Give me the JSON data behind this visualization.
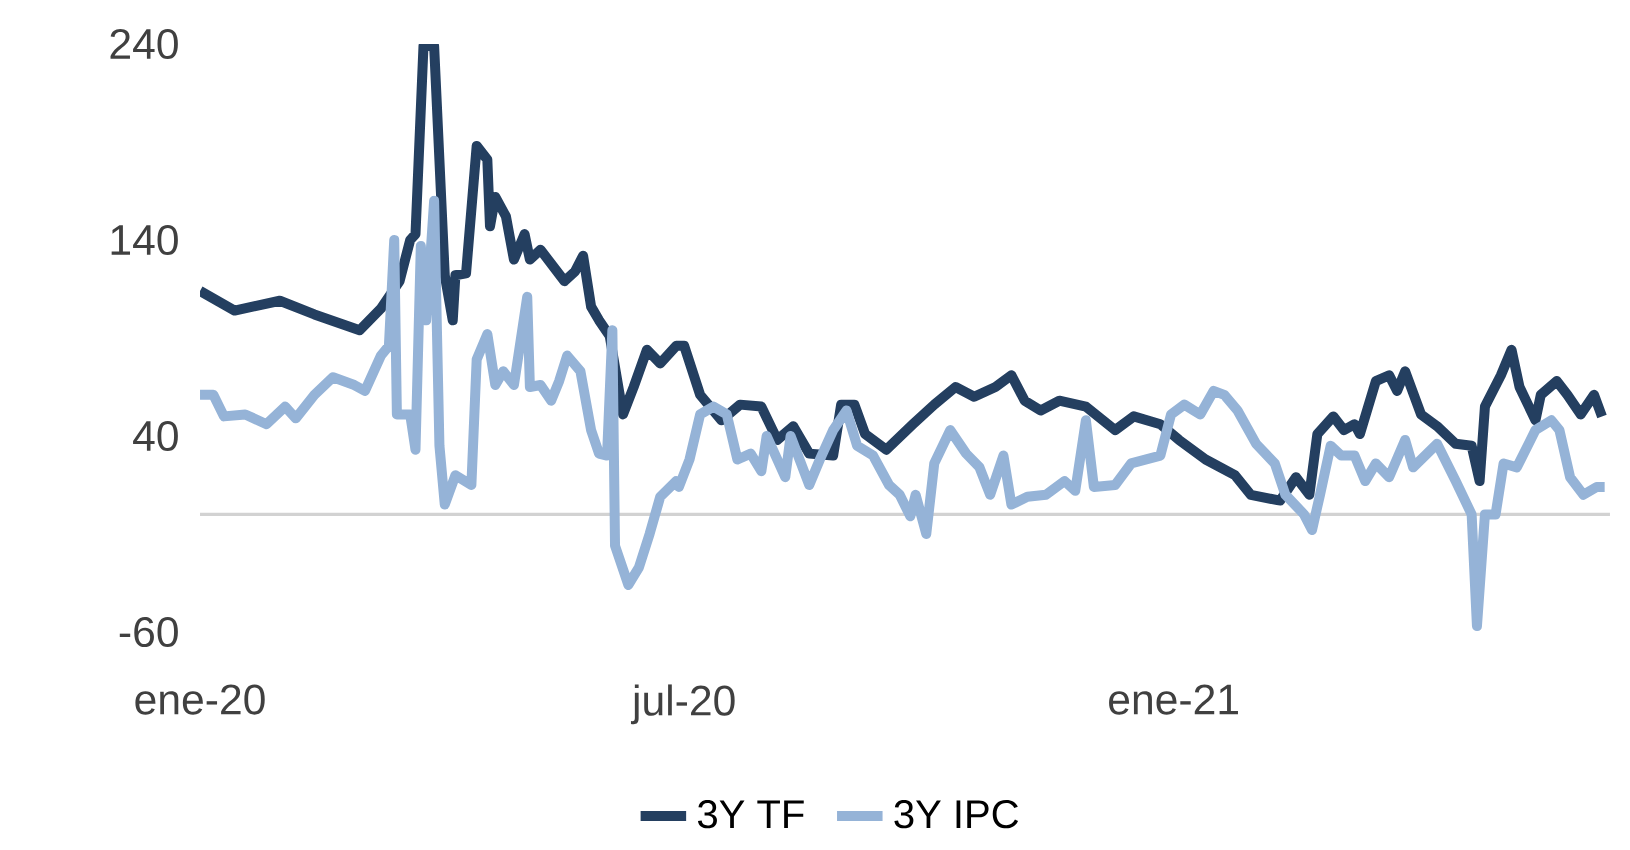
{
  "chart_data": {
    "type": "line",
    "ylim": [
      -60,
      240
    ],
    "yticks": [
      -60,
      40,
      140,
      240
    ],
    "xlim": [
      "2020-01-01",
      "2021-06-14"
    ],
    "xticks": [
      {
        "value": "2020-01-01",
        "label": "ene-20"
      },
      {
        "value": "2020-07-01",
        "label": "jul-20"
      },
      {
        "value": "2021-01-01",
        "label": "ene-21"
      }
    ],
    "legend": "bottom",
    "series": [
      {
        "name": "3Y TF",
        "color": "#243f60",
        "x": [
          "2020-01-01",
          "2020-01-14",
          "2020-01-31",
          "2020-02-13",
          "2020-03-01",
          "2020-03-09",
          "2020-03-16",
          "2020-03-20",
          "2020-03-22",
          "2020-03-25",
          "2020-03-29",
          "2020-04-02",
          "2020-04-05",
          "2020-04-06",
          "2020-04-10",
          "2020-04-14",
          "2020-04-18",
          "2020-04-19",
          "2020-04-21",
          "2020-04-25",
          "2020-04-28",
          "2020-05-02",
          "2020-05-04",
          "2020-05-08",
          "2020-05-17",
          "2020-05-21",
          "2020-05-24",
          "2020-05-27",
          "2020-05-30",
          "2020-06-03",
          "2020-06-08",
          "2020-06-12",
          "2020-06-17",
          "2020-06-22",
          "2020-06-28",
          "2020-07-01",
          "2020-07-07",
          "2020-07-15",
          "2020-07-22",
          "2020-07-30",
          "2020-08-05",
          "2020-08-11",
          "2020-08-17",
          "2020-08-26",
          "2020-08-29",
          "2020-09-03",
          "2020-09-07",
          "2020-09-15",
          "2020-09-25",
          "2020-10-03",
          "2020-10-11",
          "2020-10-18",
          "2020-10-26",
          "2020-11-01",
          "2020-11-06",
          "2020-11-12",
          "2020-11-19",
          "2020-11-29",
          "2020-12-10",
          "2020-12-17",
          "2020-12-27",
          "2021-01-03",
          "2021-01-13",
          "2021-01-24",
          "2021-01-30",
          "2021-02-10",
          "2021-02-16",
          "2021-02-21",
          "2021-02-24",
          "2021-03-02",
          "2021-03-06",
          "2021-03-10",
          "2021-03-12",
          "2021-03-18",
          "2021-03-23",
          "2021-03-26",
          "2021-03-29",
          "2021-04-04",
          "2021-04-10",
          "2021-04-17",
          "2021-04-23",
          "2021-04-26",
          "2021-04-28",
          "2021-05-04",
          "2021-05-08",
          "2021-05-11",
          "2021-05-17",
          "2021-05-19",
          "2021-05-25",
          "2021-05-29",
          "2021-06-03",
          "2021-06-08",
          "2021-06-11"
        ],
        "values": [
          114,
          104,
          109,
          102,
          94,
          105,
          119,
          140,
          143,
          239,
          239,
          122,
          99,
          122,
          123,
          188,
          181,
          147,
          162,
          152,
          130,
          143,
          130,
          135,
          119,
          124,
          132,
          106,
          99,
          91,
          51,
          65,
          84,
          77,
          86,
          86,
          61,
          48,
          56,
          55,
          38,
          45,
          31,
          30,
          56,
          56,
          41,
          33,
          46,
          56,
          65,
          60,
          65,
          71,
          58,
          53,
          58,
          55,
          43,
          50,
          46,
          38,
          28,
          20,
          10,
          7,
          19,
          10,
          41,
          50,
          43,
          46,
          41,
          68,
          71,
          63,
          73,
          51,
          45,
          36,
          35,
          17,
          55,
          71,
          84,
          65,
          48,
          61,
          68,
          61,
          51,
          61,
          50
        ]
      },
      {
        "name": "3Y IPC",
        "color": "#95b3d7",
        "x": [
          "2020-01-01",
          "2020-01-06",
          "2020-01-10",
          "2020-01-18",
          "2020-01-26",
          "2020-02-02",
          "2020-02-06",
          "2020-02-13",
          "2020-02-20",
          "2020-02-28",
          "2020-03-03",
          "2020-03-09",
          "2020-03-12",
          "2020-03-14",
          "2020-03-15",
          "2020-03-20",
          "2020-03-22",
          "2020-03-24",
          "2020-03-26",
          "2020-03-29",
          "2020-03-31",
          "2020-04-02",
          "2020-04-06",
          "2020-04-12",
          "2020-04-14",
          "2020-04-18",
          "2020-04-21",
          "2020-04-24",
          "2020-04-28",
          "2020-05-03",
          "2020-05-04",
          "2020-05-08",
          "2020-05-12",
          "2020-05-15",
          "2020-05-18",
          "2020-05-23",
          "2020-05-27",
          "2020-05-30",
          "2020-06-02",
          "2020-06-04",
          "2020-06-05",
          "2020-06-10",
          "2020-06-14",
          "2020-06-18",
          "2020-06-22",
          "2020-06-28",
          "2020-06-29",
          "2020-07-03",
          "2020-07-07",
          "2020-07-12",
          "2020-07-17",
          "2020-07-21",
          "2020-07-26",
          "2020-07-30",
          "2020-08-01",
          "2020-08-08",
          "2020-08-10",
          "2020-08-17",
          "2020-08-21",
          "2020-08-26",
          "2020-08-31",
          "2020-09-04",
          "2020-09-10",
          "2020-09-16",
          "2020-09-20",
          "2020-09-24",
          "2020-09-26",
          "2020-09-30",
          "2020-10-03",
          "2020-10-09",
          "2020-10-15",
          "2020-10-20",
          "2020-10-24",
          "2020-10-29",
          "2020-11-01",
          "2020-11-07",
          "2020-11-14",
          "2020-11-21",
          "2020-11-25",
          "2020-11-29",
          "2020-12-02",
          "2020-12-10",
          "2020-12-16",
          "2020-12-27",
          "2020-12-31",
          "2021-01-05",
          "2021-01-11",
          "2021-01-16",
          "2021-01-20",
          "2021-01-25",
          "2021-02-01",
          "2021-02-08",
          "2021-02-12",
          "2021-02-19",
          "2021-02-22",
          "2021-02-25",
          "2021-03-01",
          "2021-03-05",
          "2021-03-10",
          "2021-03-14",
          "2021-03-18",
          "2021-03-23",
          "2021-03-29",
          "2021-04-01",
          "2021-04-10",
          "2021-04-17",
          "2021-04-23",
          "2021-04-25",
          "2021-04-28",
          "2021-05-02",
          "2021-05-05",
          "2021-05-10",
          "2021-05-17",
          "2021-05-23",
          "2021-05-26",
          "2021-05-30",
          "2021-06-04",
          "2021-06-09",
          "2021-06-12"
        ],
        "values": [
          61,
          61,
          50,
          51,
          46,
          55,
          49,
          61,
          70,
          66,
          63,
          81,
          86,
          140,
          51,
          51,
          33,
          137,
          99,
          160,
          35,
          5,
          20,
          15,
          79,
          92,
          66,
          73,
          66,
          111,
          65,
          66,
          58,
          68,
          81,
          73,
          43,
          31,
          30,
          94,
          -16,
          -36,
          -27,
          -10,
          9,
          17,
          14,
          28,
          51,
          55,
          51,
          28,
          31,
          22,
          40,
          19,
          40,
          15,
          28,
          43,
          53,
          35,
          30,
          15,
          10,
          -1,
          10,
          -10,
          26,
          43,
          31,
          24,
          10,
          30,
          5,
          9,
          10,
          17,
          12,
          48,
          14,
          15,
          26,
          30,
          51,
          56,
          51,
          63,
          61,
          53,
          36,
          26,
          10,
          0,
          -8,
          10,
          35,
          30,
          30,
          17,
          26,
          19,
          38,
          24,
          36,
          17,
          0,
          -57,
          0,
          0,
          26,
          24,
          43,
          48,
          43,
          19,
          10,
          14,
          14
        ]
      }
    ]
  }
}
